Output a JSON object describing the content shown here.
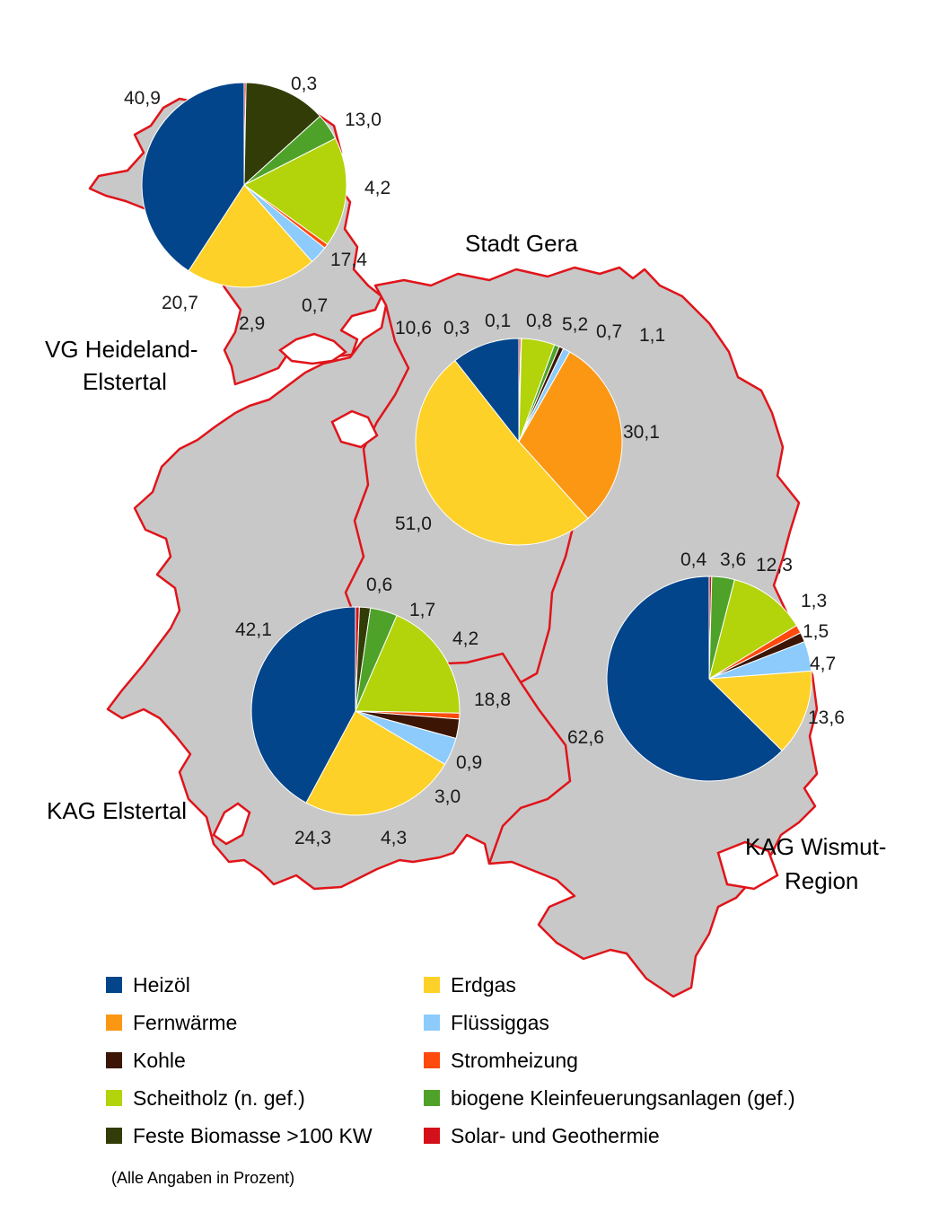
{
  "colors": {
    "Heizöl": "#02458b",
    "Erdgas": "#fdd128",
    "Fernwärme": "#fc9714",
    "Flüssiggas": "#8ccbfb",
    "Kohle": "#3c1505",
    "Stromheizung": "#fe4a0d",
    "Scheitholz (n. gef.)": "#b3d30b",
    "biogene Kleinfeuerungsanlagen (gef.)": "#4fa229",
    "Feste Biomasse >100 KW": "#313c07",
    "Solar- und Geothermie": "#d4101a"
  },
  "legend": {
    "items": [
      "Heizöl",
      "Erdgas",
      "Fernwärme",
      "Flüssiggas",
      "Kohle",
      "Stromheizung",
      "Scheitholz (n. gef.)",
      "biogene Kleinfeuerungsanlagen (gef.)",
      "Feste Biomasse >100 KW",
      "Solar- und Geothermie"
    ],
    "note": "(Alle Angaben in Prozent)"
  },
  "chart_data": [
    {
      "type": "pie",
      "title": "VG Heideland-Elstertal",
      "title_lines": [
        "VG Heideland-",
        "Elstertal"
      ],
      "slices": [
        {
          "category": "Solar- und Geothermie",
          "value": 0.3,
          "label": "0,3"
        },
        {
          "category": "Feste Biomasse >100 KW",
          "value": 13.0,
          "label": "13,0"
        },
        {
          "category": "biogene Kleinfeuerungsanlagen (gef.)",
          "value": 4.2,
          "label": "4,2"
        },
        {
          "category": "Scheitholz (n. gef.)",
          "value": 17.4,
          "label": "17,4"
        },
        {
          "category": "Stromheizung",
          "value": 0.7,
          "label": "0,7"
        },
        {
          "category": "Flüssiggas",
          "value": 2.9,
          "label": "2,9"
        },
        {
          "category": "Erdgas",
          "value": 20.7,
          "label": "20,7"
        },
        {
          "category": "Heizöl",
          "value": 40.9,
          "label": "40,9"
        }
      ]
    },
    {
      "type": "pie",
      "title": "Stadt Gera",
      "title_lines": [
        "Stadt Gera"
      ],
      "slices": [
        {
          "category": "Solar- und Geothermie",
          "value": 0.3,
          "label": "0,3"
        },
        {
          "category": "Feste Biomasse >100 KW",
          "value": 0.1,
          "label": "0,1"
        },
        {
          "category": "Scheitholz (n. gef.)",
          "value": 5.2,
          "label": "5,2"
        },
        {
          "category": "biogene Kleinfeuerungsanlagen (gef.)",
          "value": 0.8,
          "label": "0,8"
        },
        {
          "category": "Kohle",
          "value": 0.7,
          "label": "0,7"
        },
        {
          "category": "Flüssiggas",
          "value": 1.1,
          "label": "1,1"
        },
        {
          "category": "Fernwärme",
          "value": 30.1,
          "label": "30,1"
        },
        {
          "category": "Erdgas",
          "value": 51.0,
          "label": "51,0"
        },
        {
          "category": "Heizöl",
          "value": 10.6,
          "label": "10,6"
        }
      ]
    },
    {
      "type": "pie",
      "title": "KAG Elstertal",
      "title_lines": [
        "KAG Elstertal"
      ],
      "slices": [
        {
          "category": "Solar- und Geothermie",
          "value": 0.6,
          "label": "0,6"
        },
        {
          "category": "Feste Biomasse >100 KW",
          "value": 1.7,
          "label": "1,7"
        },
        {
          "category": "biogene Kleinfeuerungsanlagen (gef.)",
          "value": 4.2,
          "label": "4,2"
        },
        {
          "category": "Scheitholz (n. gef.)",
          "value": 18.8,
          "label": "18,8"
        },
        {
          "category": "Stromheizung",
          "value": 0.9,
          "label": "0,9"
        },
        {
          "category": "Kohle",
          "value": 3.0,
          "label": "3,0"
        },
        {
          "category": "Flüssiggas",
          "value": 4.3,
          "label": "4,3"
        },
        {
          "category": "Erdgas",
          "value": 24.3,
          "label": "24,3"
        },
        {
          "category": "Heizöl",
          "value": 42.1,
          "label": "42,1"
        }
      ]
    },
    {
      "type": "pie",
      "title": "KAG Wismut-Region",
      "title_lines": [
        "KAG Wismut-",
        "Region"
      ],
      "slices": [
        {
          "category": "Solar- und Geothermie",
          "value": 0.4,
          "label": "0,4"
        },
        {
          "category": "biogene Kleinfeuerungsanlagen (gef.)",
          "value": 3.6,
          "label": "3,6"
        },
        {
          "category": "Scheitholz (n. gef.)",
          "value": 12.3,
          "label": "12,3"
        },
        {
          "category": "Stromheizung",
          "value": 1.3,
          "label": "1,3"
        },
        {
          "category": "Kohle",
          "value": 1.5,
          "label": "1,5"
        },
        {
          "category": "Flüssiggas",
          "value": 4.7,
          "label": "4,7"
        },
        {
          "category": "Erdgas",
          "value": 13.6,
          "label": "13,6"
        },
        {
          "category": "Heizöl",
          "value": 62.6,
          "label": "62,6"
        }
      ]
    }
  ]
}
